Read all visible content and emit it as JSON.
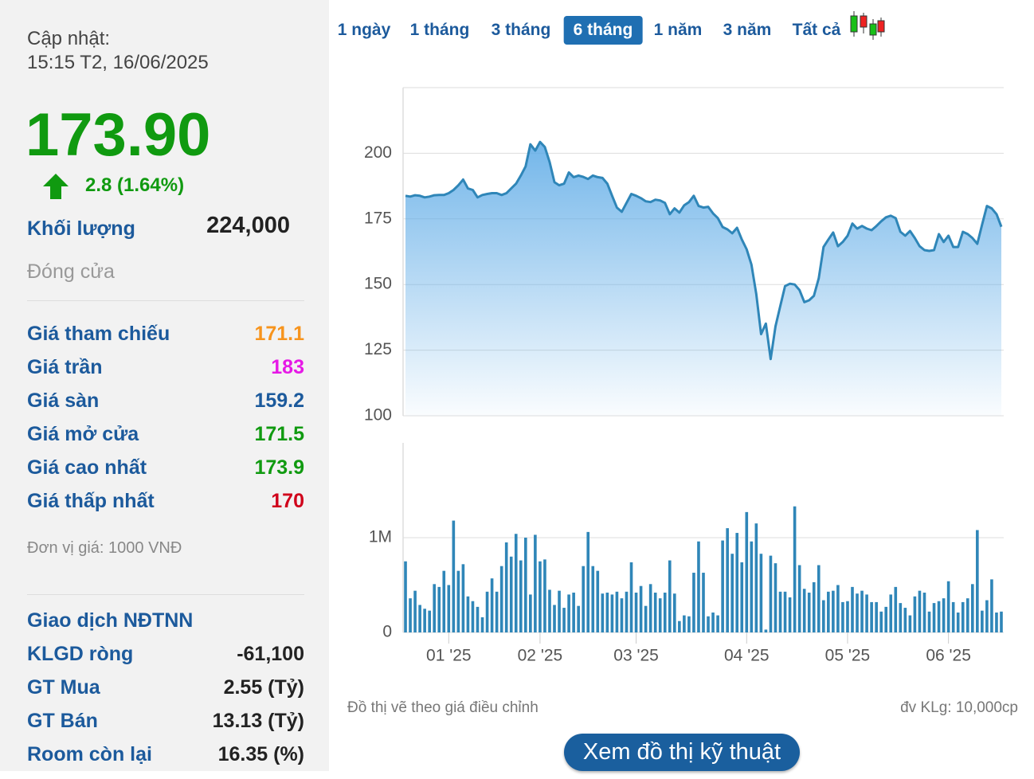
{
  "sidebar": {
    "updated_label": "Cập nhật:",
    "updated_time": "15:15 T2, 16/06/2025",
    "price": "173.90",
    "change": "2.8 (1.64%)",
    "volume_label": "Khối lượng",
    "volume": "224,000",
    "status": "Đóng cửa",
    "stats": [
      {
        "label": "Giá tham chiếu",
        "value": "171.1",
        "color": "#f7941d"
      },
      {
        "label": "Giá trần",
        "value": "183",
        "color": "#e619e6"
      },
      {
        "label": "Giá sàn",
        "value": "159.2",
        "color": "#1c5a9c"
      },
      {
        "label": "Giá mở cửa",
        "value": "171.5",
        "color": "#109a10"
      },
      {
        "label": "Giá cao nhất",
        "value": "173.9",
        "color": "#109a10"
      },
      {
        "label": "Giá thấp nhất",
        "value": "170",
        "color": "#d0021b"
      }
    ],
    "unit_note": "Đơn vị giá: 1000 VNĐ",
    "foreign_title": "Giao dịch NĐTNN",
    "foreign": [
      {
        "label": "KLGD ròng",
        "value": "-61,100"
      },
      {
        "label": "GT Mua",
        "value": "2.55 (Tỷ)"
      },
      {
        "label": "GT Bán",
        "value": "13.13 (Tỷ)"
      },
      {
        "label": "Room còn lại",
        "value": "16.35 (%)"
      }
    ]
  },
  "tabs": [
    "1 ngày",
    "1 tháng",
    "3 tháng",
    "6 tháng",
    "1 năm",
    "3 năm",
    "Tất cả"
  ],
  "active_tab": 3,
  "chart_data": [
    {
      "type": "area",
      "color": "#2f86b8",
      "grid": true,
      "categories": [
        null,
        null,
        null,
        null,
        null,
        null,
        null,
        null,
        null,
        null,
        null,
        null,
        null,
        null,
        null,
        null,
        null,
        null,
        null,
        null,
        null,
        null,
        null,
        null,
        null,
        null,
        null,
        null,
        null,
        null,
        null,
        null,
        null,
        null,
        null,
        null,
        null,
        null,
        null,
        null,
        null,
        null,
        null,
        null,
        null,
        null,
        null,
        null,
        null,
        null,
        null,
        null,
        null,
        null,
        null,
        null,
        null,
        null,
        null,
        null,
        null,
        null,
        null,
        null,
        null,
        null,
        null,
        null,
        null,
        null,
        null,
        null,
        null,
        null,
        null,
        null,
        null,
        null,
        null,
        null,
        null,
        null,
        null,
        null,
        null,
        null,
        null,
        null,
        null,
        null,
        null,
        null,
        null,
        null,
        null,
        null,
        null,
        null,
        null,
        null,
        null,
        null,
        null,
        null,
        null,
        null,
        null,
        null,
        null,
        null,
        null,
        null,
        null,
        null,
        null,
        null,
        null,
        null,
        null,
        null,
        null,
        null,
        null,
        null,
        null
      ],
      "values": [
        183.8,
        183.5,
        184,
        183.8,
        183.2,
        183.5,
        184,
        184.1,
        184.1,
        184.8,
        186,
        187.8,
        190,
        186.6,
        186,
        183.2,
        184.1,
        184.5,
        184.8,
        184.8,
        184.1,
        184.8,
        186.6,
        188.4,
        191.5,
        195,
        203.4,
        201,
        204.3,
        202.4,
        196.6,
        189,
        187.8,
        188.4,
        192.7,
        190.9,
        191.5,
        191,
        190.2,
        191.5,
        190.9,
        190.6,
        188.4,
        183.8,
        179.3,
        177.7,
        181.1,
        184.5,
        183.8,
        182.9,
        181.7,
        181.4,
        182.3,
        182,
        181.1,
        176.8,
        179,
        177.4,
        180.2,
        181.4,
        183.8,
        179.9,
        179.3,
        179.6,
        177.1,
        175.3,
        171.9,
        171,
        169.5,
        171.6,
        167.1,
        163.4,
        157.6,
        146.3,
        131.1,
        135.1,
        121.6,
        134.1,
        141.8,
        149.4,
        150.3,
        150,
        147.9,
        143.3,
        144,
        145.7,
        152.4,
        164.3,
        167.1,
        169.8,
        164.6,
        166.2,
        168.6,
        173.2,
        171.3,
        172.3,
        171.3,
        170.7,
        172.3,
        174.1,
        175.6,
        176.2,
        175.3,
        170.1,
        168.6,
        170.4,
        167.7,
        164.6,
        163.1,
        162.8,
        163.1,
        169.2,
        166.2,
        168.6,
        164.3,
        164.3,
        170.1,
        169.2,
        167.7,
        165.5,
        172.9,
        179.9,
        179,
        176.8,
        172
      ],
      "ylim": [
        100,
        225
      ],
      "yticks": [
        100,
        125,
        150,
        175,
        200
      ]
    },
    {
      "type": "bar",
      "color": "#2f86b8",
      "categories": [
        null,
        null,
        null,
        null,
        null,
        null,
        null,
        null,
        null,
        null,
        null,
        null,
        null,
        null,
        null,
        null,
        null,
        null,
        null,
        null,
        null,
        null,
        null,
        null,
        null,
        null,
        null,
        null,
        null,
        null,
        null,
        null,
        null,
        null,
        null,
        null,
        null,
        null,
        null,
        null,
        null,
        null,
        null,
        null,
        null,
        null,
        null,
        null,
        null,
        null,
        null,
        null,
        null,
        null,
        null,
        null,
        null,
        null,
        null,
        null,
        null,
        null,
        null,
        null,
        null,
        null,
        null,
        null,
        null,
        null,
        null,
        null,
        null,
        null,
        null,
        null,
        null,
        null,
        null,
        null,
        null,
        null,
        null,
        null,
        null,
        null,
        null,
        null,
        null,
        null,
        null,
        null,
        null,
        null,
        null,
        null,
        null,
        null,
        null,
        null,
        null,
        null,
        null,
        null,
        null,
        null,
        null,
        null,
        null,
        null,
        null,
        null,
        null,
        null,
        null,
        null,
        null,
        null,
        null,
        null,
        null,
        null,
        null,
        null,
        null
      ],
      "values": [
        750000,
        360000,
        440000,
        290000,
        250000,
        230000,
        510000,
        480000,
        650000,
        500000,
        1180000,
        650000,
        720000,
        380000,
        330000,
        270000,
        160000,
        430000,
        570000,
        430000,
        700000,
        950000,
        800000,
        1040000,
        760000,
        1000000,
        400000,
        1030000,
        750000,
        770000,
        450000,
        290000,
        440000,
        260000,
        400000,
        420000,
        280000,
        700000,
        1060000,
        700000,
        650000,
        410000,
        420000,
        400000,
        430000,
        360000,
        430000,
        740000,
        420000,
        490000,
        280000,
        510000,
        420000,
        360000,
        420000,
        760000,
        410000,
        120000,
        180000,
        170000,
        630000,
        960000,
        630000,
        170000,
        210000,
        180000,
        970000,
        1100000,
        830000,
        1050000,
        740000,
        1270000,
        960000,
        1150000,
        830000,
        30000,
        810000,
        730000,
        430000,
        430000,
        370000,
        1330000,
        710000,
        460000,
        420000,
        530000,
        710000,
        340000,
        430000,
        440000,
        500000,
        320000,
        330000,
        480000,
        410000,
        440000,
        400000,
        320000,
        320000,
        220000,
        270000,
        400000,
        480000,
        310000,
        260000,
        180000,
        380000,
        440000,
        420000,
        220000,
        310000,
        330000,
        360000,
        540000,
        320000,
        210000,
        320000,
        360000,
        510000,
        1080000,
        230000,
        340000,
        560000,
        210000,
        220000
      ],
      "ylim": [
        0,
        2000000
      ],
      "yticks": [
        0,
        {
          "value": 1000000,
          "label": "1M"
        }
      ],
      "xticks": [
        {
          "value": 9,
          "label": "01 '25"
        },
        {
          "value": 28,
          "label": "02 '25"
        },
        {
          "value": 48,
          "label": "03 '25"
        },
        {
          "value": 71,
          "label": "04 '25"
        },
        {
          "value": 92,
          "label": "05 '25"
        },
        {
          "value": 113,
          "label": "06 '25"
        }
      ]
    }
  ],
  "footer": {
    "note_left": "Đồ thị vẽ theo giá điều chỉnh",
    "note_right": "đv KLg: 10,000cp",
    "button": "Xem đồ thị kỹ thuật"
  }
}
